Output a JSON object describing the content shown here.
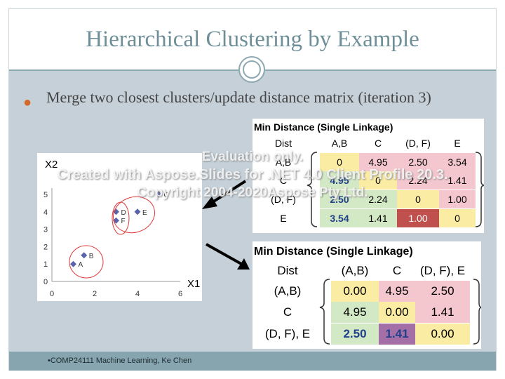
{
  "slide": {
    "title": "Hierarchical Clustering by Example",
    "bullet": "Merge two closest clusters/update distance matrix (iteration 3)",
    "footer": "•COMP24111  Machine Learning, Ke Chen"
  },
  "plot": {
    "y_axis_label": "X2",
    "x_axis_label": "X1",
    "x_ticks": [
      "0",
      "2",
      "4",
      "6"
    ],
    "y_ticks": [
      "0",
      "1",
      "2",
      "3",
      "4",
      "5"
    ],
    "points": [
      {
        "label": "A",
        "x": 1,
        "y": 1
      },
      {
        "label": "B",
        "x": 1.5,
        "y": 1.5
      },
      {
        "label": "C",
        "x": 5,
        "y": 5
      },
      {
        "label": "D",
        "x": 3,
        "y": 4
      },
      {
        "label": "E",
        "x": 4,
        "y": 4
      },
      {
        "label": "F",
        "x": 3,
        "y": 3.5
      }
    ],
    "marker_color": "#5a64a8",
    "circle_color": "#e03a3a"
  },
  "table1": {
    "title": "Min Distance (Single Linkage)",
    "corner": "Dist",
    "columns": [
      "A,B",
      "C",
      "(D, F)",
      "E"
    ],
    "rows": [
      {
        "label": "A,B",
        "cells": [
          "0",
          "4.95",
          "2.50",
          "3.54"
        ]
      },
      {
        "label": "C",
        "cells": [
          "4.95",
          "0",
          "2.24",
          "1.41"
        ]
      },
      {
        "label": "(D, F)",
        "cells": [
          "2.50",
          "2.24",
          "0",
          "1.00"
        ]
      },
      {
        "label": "E",
        "cells": [
          "3.54",
          "1.41",
          "1.00",
          "0"
        ]
      }
    ]
  },
  "table2": {
    "title": "Min Distance (Single Linkage)",
    "corner": "Dist",
    "columns": [
      "(A,B)",
      "C",
      "(D, F), E"
    ],
    "rows": [
      {
        "label": "(A,B)",
        "cells": [
          "0.00",
          "4.95",
          "2.50"
        ]
      },
      {
        "label": "C",
        "cells": [
          "4.95",
          "0.00",
          "1.41"
        ]
      },
      {
        "label": "(D, F), E",
        "cells": [
          "2.50",
          "1.41",
          "0.00"
        ]
      }
    ]
  },
  "watermark": {
    "line1": "Evaluation only.",
    "line2": "Created with Aspose.Slides for .NET 4.0 Client Profile 20.3.",
    "line3": "Copyright 2004-2020Aspose Pty Ltd."
  },
  "colors": {
    "title": "#6e8f98",
    "body_bg": "#c5d0d8",
    "footer_bg": "#87a5af",
    "bullet": "#d36a2c",
    "cell_pink": "#f4c7ce",
    "cell_green": "#d3e8c4",
    "cell_yellow": "#fbeca3",
    "cell_red": "#c0504d",
    "cell_purple": "#a36fa6"
  }
}
